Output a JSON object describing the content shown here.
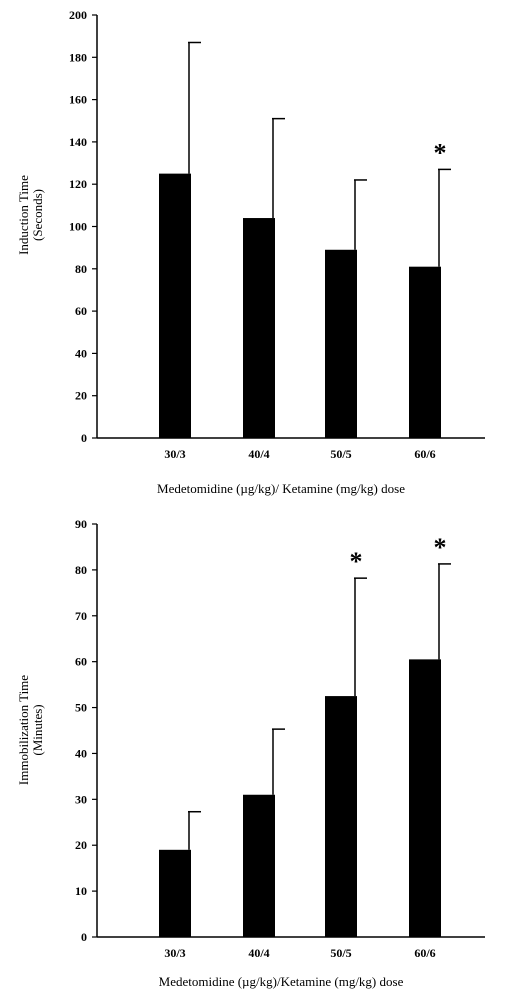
{
  "chart_data": [
    {
      "type": "bar",
      "categories": [
        "30/3",
        "40/4",
        "50/5",
        "60/6"
      ],
      "values": [
        125,
        104,
        89,
        81
      ],
      "error_upper": [
        187,
        151,
        122,
        127
      ],
      "annotations": [
        "",
        "",
        "",
        "*"
      ],
      "ylabel_line1": "Induction Time",
      "ylabel_line2": "(Seconds)",
      "xlabel": "Medetomidine (µg/kg)/ Ketamine (mg/kg) dose",
      "ylim": [
        0,
        200
      ],
      "yticks": [
        "0",
        "20",
        "40",
        "60",
        "80",
        "100",
        "120",
        "140",
        "160",
        "180",
        "200"
      ],
      "grid": false,
      "bar_color": "#000000"
    },
    {
      "type": "bar",
      "categories": [
        "30/3",
        "40/4",
        "50/5",
        "60/6"
      ],
      "values": [
        19,
        31,
        52.5,
        60.5
      ],
      "error_upper": [
        27.3,
        45.3,
        78.2,
        81.3
      ],
      "annotations": [
        "",
        "",
        "*",
        "*"
      ],
      "ylabel_line1": "Immobilization Time",
      "ylabel_line2": "(Minutes)",
      "xlabel": "Medetomidine (µg/kg)/Ketamine (mg/kg) dose",
      "ylim": [
        0,
        90
      ],
      "yticks": [
        "0",
        "10",
        "20",
        "30",
        "40",
        "50",
        "60",
        "70",
        "80",
        "90"
      ],
      "grid": false,
      "bar_color": "#000000"
    }
  ]
}
